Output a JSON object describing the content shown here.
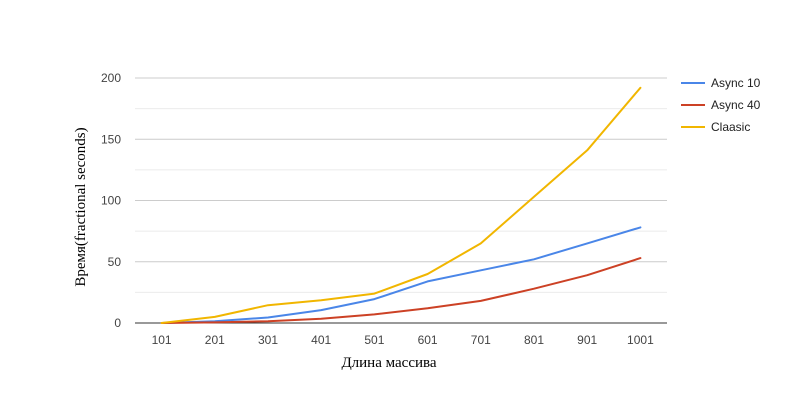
{
  "chart_data": {
    "type": "line",
    "title": "",
    "xlabel": "Длина массива",
    "ylabel": "Время(fractional seconds)",
    "categories": [
      "101",
      "201",
      "301",
      "401",
      "501",
      "601",
      "701",
      "801",
      "901",
      "1001"
    ],
    "ylim": [
      0,
      200
    ],
    "yticks": [
      0,
      50,
      100,
      150,
      200
    ],
    "grid": true,
    "legend_position": "right",
    "series": [
      {
        "name": "Async 10",
        "color": "#4a86e8",
        "values": [
          0,
          1.5,
          4.5,
          10.5,
          19.5,
          34,
          43,
          52,
          65,
          78
        ]
      },
      {
        "name": "Async 40",
        "color": "#cc4125",
        "values": [
          0,
          0.5,
          1.5,
          3.5,
          7,
          12,
          18,
          28,
          39,
          53
        ]
      },
      {
        "name": "Claasic",
        "color": "#f1b600",
        "values": [
          0,
          5,
          14.5,
          18.5,
          24,
          40,
          65,
          103,
          141,
          192
        ]
      }
    ]
  }
}
